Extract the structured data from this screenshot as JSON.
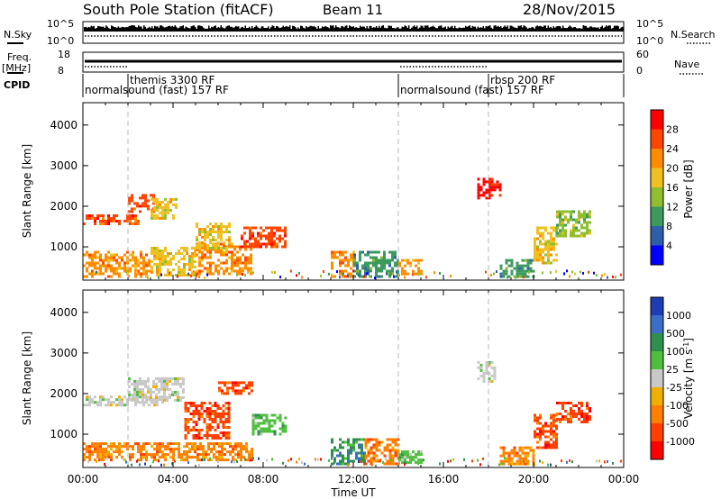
{
  "header": {
    "station": "South Pole Station (fitACF)",
    "beam": "Beam 11",
    "date": "28/Nov/2015"
  },
  "aux_panels": {
    "nsky": {
      "label": "N.Sky",
      "ticks_left": [
        "10^5",
        "10^0"
      ],
      "ticks_right": [
        "10^5",
        "10^0"
      ],
      "right_label": "N.Search"
    },
    "freq": {
      "label_line1": "Freq.",
      "label_line2": "[MHz]",
      "ticks_left": [
        "18",
        "8"
      ],
      "ticks_right": [
        "60",
        "0"
      ],
      "right_label": "Nave"
    },
    "cpid": {
      "label": "CPID",
      "segments": [
        {
          "text": "normalsound (fast) 157 RF",
          "start": 0.0,
          "end": 14.0
        },
        {
          "text": "themis 3300 RF",
          "start": 2.0,
          "end": 14.0
        },
        {
          "text": "normalsound (fast) 157 RF",
          "start": 14.0,
          "end": 18.0
        },
        {
          "text": "rbsp 200 RF",
          "start": 18.0,
          "end": 24.0
        }
      ]
    }
  },
  "x_axis": {
    "label": "Time UT",
    "ticks": [
      "00:00",
      "04:00",
      "08:00",
      "12:00",
      "16:00",
      "20:00",
      "00:00"
    ]
  },
  "colorbars": {
    "power": {
      "label": "Power [dB]",
      "ticks": [
        "28",
        "24",
        "20",
        "16",
        "12",
        "8",
        "4"
      ],
      "colors": [
        "#ff0000",
        "#ff4500",
        "#ff8c00",
        "#f0c020",
        "#8fbf2f",
        "#3c9a5f",
        "#2f5fa8",
        "#0000ff"
      ]
    },
    "velocity": {
      "label": "Velocity [m s",
      "label_sup": "-1",
      "label_end": "]",
      "ticks": [
        "1000",
        "500",
        "100",
        "25",
        "-25",
        "-100",
        "-500",
        "-1000"
      ],
      "colors": [
        "#1e3cb4",
        "#3b6ec8",
        "#2f8f4f",
        "#4fbf3f",
        "#c8c8c8",
        "#f0b000",
        "#ff8000",
        "#ff4000",
        "#ff0000"
      ]
    }
  },
  "chart_data": [
    {
      "type": "heatmap",
      "quantity": "power",
      "xlabel": "Time UT",
      "ylabel": "Slant Range [km]",
      "xlim": [
        0,
        24
      ],
      "ylim": [
        180,
        4550
      ],
      "yticks": [
        "1000",
        "2000",
        "3000",
        "4000"
      ],
      "ytick_values": [
        1000,
        2000,
        3000,
        4000
      ],
      "xtick_values": [
        0,
        4,
        8,
        12,
        16,
        20,
        24
      ],
      "regions": [
        {
          "t0": 0.0,
          "t1": 3.0,
          "r0": 300,
          "r1": 900,
          "level": 2
        },
        {
          "t0": 3.0,
          "t1": 5.0,
          "r0": 300,
          "r1": 1000,
          "level": 3
        },
        {
          "t0": 5.0,
          "t1": 7.5,
          "r0": 350,
          "r1": 1100,
          "level": 2
        },
        {
          "t0": 0.0,
          "t1": 2.5,
          "r0": 1600,
          "r1": 1800,
          "level": 1
        },
        {
          "t0": 2.0,
          "t1": 3.2,
          "r0": 1900,
          "r1": 2300,
          "level": 1
        },
        {
          "t0": 3.0,
          "t1": 4.2,
          "r0": 1700,
          "r1": 2200,
          "level": 3
        },
        {
          "t0": 5.0,
          "t1": 6.5,
          "r0": 1000,
          "r1": 1600,
          "level": 3
        },
        {
          "t0": 7.0,
          "t1": 9.0,
          "r0": 1000,
          "r1": 1500,
          "level": 1
        },
        {
          "t0": 11.0,
          "t1": 12.0,
          "r0": 300,
          "r1": 900,
          "level": 2
        },
        {
          "t0": 12.0,
          "t1": 14.0,
          "r0": 300,
          "r1": 900,
          "level": 5
        },
        {
          "t0": 14.0,
          "t1": 15.0,
          "r0": 350,
          "r1": 700,
          "level": 2
        },
        {
          "t0": 17.5,
          "t1": 18.5,
          "r0": 2200,
          "r1": 2700,
          "level": 0
        },
        {
          "t0": 18.5,
          "t1": 20.0,
          "r0": 300,
          "r1": 700,
          "level": 5
        },
        {
          "t0": 20.0,
          "t1": 21.0,
          "r0": 600,
          "r1": 1500,
          "level": 3
        },
        {
          "t0": 21.0,
          "t1": 22.5,
          "r0": 1300,
          "r1": 1900,
          "level": 4
        }
      ]
    },
    {
      "type": "heatmap",
      "quantity": "velocity",
      "xlabel": "Time UT",
      "ylabel": "Slant Range [km]",
      "xlim": [
        0,
        24
      ],
      "ylim": [
        180,
        4550
      ],
      "yticks": [
        "1000",
        "2000",
        "3000",
        "4000"
      ],
      "ytick_values": [
        1000,
        2000,
        3000,
        4000
      ],
      "xtick_values": [
        0,
        4,
        8,
        12,
        16,
        20,
        24
      ],
      "regions": [
        {
          "t0": 0.0,
          "t1": 7.5,
          "r0": 400,
          "r1": 800,
          "level": 6
        },
        {
          "t0": 0.0,
          "t1": 3.5,
          "r0": 1700,
          "r1": 1950,
          "level": 4
        },
        {
          "t0": 2.0,
          "t1": 4.5,
          "r0": 1850,
          "r1": 2400,
          "level": 4
        },
        {
          "t0": 4.5,
          "t1": 6.5,
          "r0": 900,
          "r1": 1800,
          "level": 7
        },
        {
          "t0": 6.0,
          "t1": 7.5,
          "r0": 2000,
          "r1": 2300,
          "level": 7
        },
        {
          "t0": 7.5,
          "t1": 9.0,
          "r0": 1000,
          "r1": 1500,
          "level": 3
        },
        {
          "t0": 11.0,
          "t1": 12.5,
          "r0": 300,
          "r1": 900,
          "level": 2
        },
        {
          "t0": 12.5,
          "t1": 14.0,
          "r0": 300,
          "r1": 900,
          "level": 6
        },
        {
          "t0": 14.0,
          "t1": 15.0,
          "r0": 300,
          "r1": 600,
          "level": 3
        },
        {
          "t0": 17.5,
          "t1": 18.3,
          "r0": 2300,
          "r1": 2800,
          "level": 4
        },
        {
          "t0": 18.5,
          "t1": 20.0,
          "r0": 300,
          "r1": 700,
          "level": 6
        },
        {
          "t0": 20.0,
          "t1": 21.0,
          "r0": 700,
          "r1": 1500,
          "level": 7
        },
        {
          "t0": 21.0,
          "t1": 22.5,
          "r0": 1300,
          "r1": 1800,
          "level": 7
        }
      ]
    }
  ]
}
